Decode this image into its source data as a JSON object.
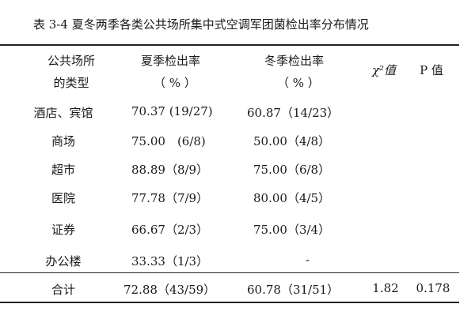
{
  "caption": "表 3-4 夏冬两季各类公共场所集中式空调军团菌检出率分布情况",
  "header": {
    "col1_line1": "公共场所",
    "col1_line2": "的类型",
    "col2_line1": "夏季检出率",
    "col2_line2": "（ % ）",
    "col3_line1": "冬季检出率",
    "col3_line2": "（ % ）",
    "col4": "χ²值",
    "col5": "P 值"
  },
  "rows": [
    {
      "type": "酒店、宾馆",
      "summer": "70.37 (19/27)",
      "winter": "60.87（14/23）"
    },
    {
      "type": "商场",
      "summer": "75.00　(6/8)",
      "winter": "50.00（4/8）"
    },
    {
      "type": "超市",
      "summer": "88.89（8/9）",
      "winter": "75.00（6/8）"
    },
    {
      "type": "医院",
      "summer": "77.78（7/9）",
      "winter": "80.00（4/5）"
    },
    {
      "type": "证券",
      "summer": "66.67（2/3）",
      "winter": "75.00（3/4）"
    },
    {
      "type": "办公楼",
      "summer": "33.33（1/3）",
      "winter": "-"
    }
  ],
  "total": {
    "type": "合计",
    "summer": "72.88（43/59）",
    "winter": "60.78（31/51）",
    "chi2": "1.82",
    "p": "0.178"
  }
}
